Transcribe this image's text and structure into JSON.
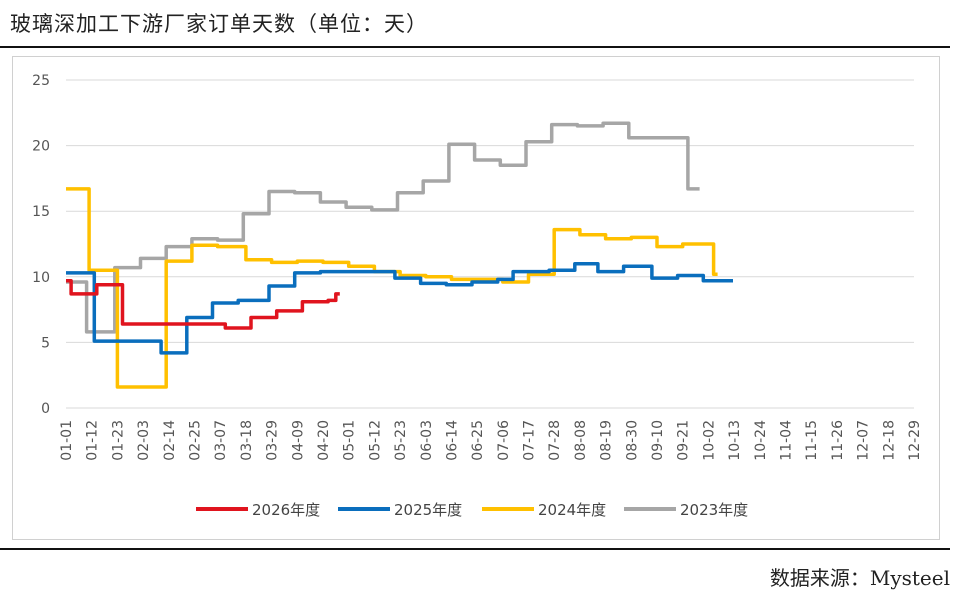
{
  "header": {
    "title": "玻璃深加工下游厂家订单天数（单位：天）"
  },
  "footer": {
    "source": "数据来源：Mysteel"
  },
  "colors": {
    "s2026": "#e0141e",
    "s2025": "#0a6ebd",
    "s2024": "#ffc000",
    "s2023": "#a6a6a6",
    "grid": "#d9d9d9"
  },
  "chart_data": {
    "type": "line",
    "title": "玻璃深加工下游厂家订单天数（单位：天）",
    "ylim": [
      0,
      25
    ],
    "yticks": [
      0,
      5,
      10,
      15,
      20,
      25
    ],
    "grid": true,
    "legend_position": "bottom",
    "categories": [
      "01-01",
      "01-12",
      "01-23",
      "02-03",
      "02-14",
      "02-25",
      "03-07",
      "03-18",
      "03-29",
      "04-09",
      "04-20",
      "05-01",
      "05-12",
      "05-23",
      "06-03",
      "06-14",
      "06-25",
      "07-06",
      "07-17",
      "07-28",
      "08-08",
      "08-19",
      "08-30",
      "09-10",
      "09-21",
      "10-02",
      "10-13",
      "10-24",
      "11-04",
      "11-15",
      "11-26",
      "12-07",
      "12-18",
      "12-29"
    ],
    "series": [
      {
        "name": "2026年度",
        "color": "#e0141e",
        "points": [
          [
            0,
            9.7
          ],
          [
            0.2,
            8.7
          ],
          [
            1.2,
            9.4
          ],
          [
            2.2,
            6.4
          ],
          [
            3.2,
            6.4
          ],
          [
            4.2,
            6.4
          ],
          [
            5.4,
            6.4
          ],
          [
            6.2,
            6.1
          ],
          [
            7.2,
            6.9
          ],
          [
            8.2,
            7.4
          ],
          [
            9.2,
            8.1
          ],
          [
            10.2,
            8.2
          ],
          [
            10.5,
            8.7
          ]
        ]
      },
      {
        "name": "2025年度",
        "color": "#0a6ebd",
        "points": [
          [
            0,
            10.3
          ],
          [
            1.1,
            5.1
          ],
          [
            2.3,
            5.1
          ],
          [
            3.7,
            4.2
          ],
          [
            4.7,
            6.9
          ],
          [
            5.7,
            8.0
          ],
          [
            6.7,
            8.2
          ],
          [
            7.9,
            9.3
          ],
          [
            8.9,
            10.3
          ],
          [
            9.9,
            10.4
          ],
          [
            11.5,
            10.4
          ],
          [
            12.8,
            9.9
          ],
          [
            13.8,
            9.5
          ],
          [
            14.8,
            9.4
          ],
          [
            15.8,
            9.6
          ],
          [
            16.8,
            9.8
          ],
          [
            17.4,
            10.4
          ],
          [
            18.8,
            10.5
          ],
          [
            19.8,
            11.0
          ],
          [
            20.7,
            10.4
          ],
          [
            21.7,
            10.8
          ],
          [
            22.8,
            9.9
          ],
          [
            23.8,
            10.1
          ],
          [
            24.8,
            9.7
          ],
          [
            25.8,
            9.7
          ]
        ]
      },
      {
        "name": "2024年度",
        "color": "#ffc000",
        "points": [
          [
            0,
            16.7
          ],
          [
            0.9,
            10.5
          ],
          [
            2.0,
            1.6
          ],
          [
            3.9,
            11.2
          ],
          [
            4.9,
            12.4
          ],
          [
            5.9,
            12.3
          ],
          [
            7.0,
            11.3
          ],
          [
            8.0,
            11.1
          ],
          [
            9.0,
            11.2
          ],
          [
            10.0,
            11.1
          ],
          [
            11.0,
            10.8
          ],
          [
            12.0,
            10.4
          ],
          [
            13.0,
            10.1
          ],
          [
            14.0,
            10.0
          ],
          [
            15.0,
            9.8
          ],
          [
            16.0,
            9.8
          ],
          [
            17.0,
            9.6
          ],
          [
            18.0,
            10.2
          ],
          [
            19.0,
            13.6
          ],
          [
            20.0,
            13.2
          ],
          [
            21.0,
            12.9
          ],
          [
            22.0,
            13.0
          ],
          [
            23.0,
            12.3
          ],
          [
            24.0,
            12.5
          ],
          [
            25.0,
            12.5
          ],
          [
            25.2,
            10.2
          ]
        ]
      },
      {
        "name": "2023年度",
        "color": "#a6a6a6",
        "points": [
          [
            0,
            9.6
          ],
          [
            0.8,
            5.8
          ],
          [
            1.9,
            10.7
          ],
          [
            2.9,
            11.4
          ],
          [
            3.9,
            12.3
          ],
          [
            4.9,
            12.9
          ],
          [
            5.9,
            12.8
          ],
          [
            6.9,
            14.8
          ],
          [
            7.9,
            16.5
          ],
          [
            8.9,
            16.4
          ],
          [
            9.9,
            15.7
          ],
          [
            10.9,
            15.3
          ],
          [
            11.9,
            15.1
          ],
          [
            12.9,
            16.4
          ],
          [
            13.9,
            17.3
          ],
          [
            14.9,
            20.1
          ],
          [
            15.9,
            18.9
          ],
          [
            16.9,
            18.5
          ],
          [
            17.9,
            20.3
          ],
          [
            18.9,
            21.6
          ],
          [
            19.9,
            21.5
          ],
          [
            20.9,
            21.7
          ],
          [
            21.9,
            20.6
          ],
          [
            22.9,
            20.6
          ],
          [
            23.9,
            20.6
          ],
          [
            24.2,
            16.7
          ],
          [
            24.5,
            16.7
          ]
        ]
      }
    ]
  }
}
